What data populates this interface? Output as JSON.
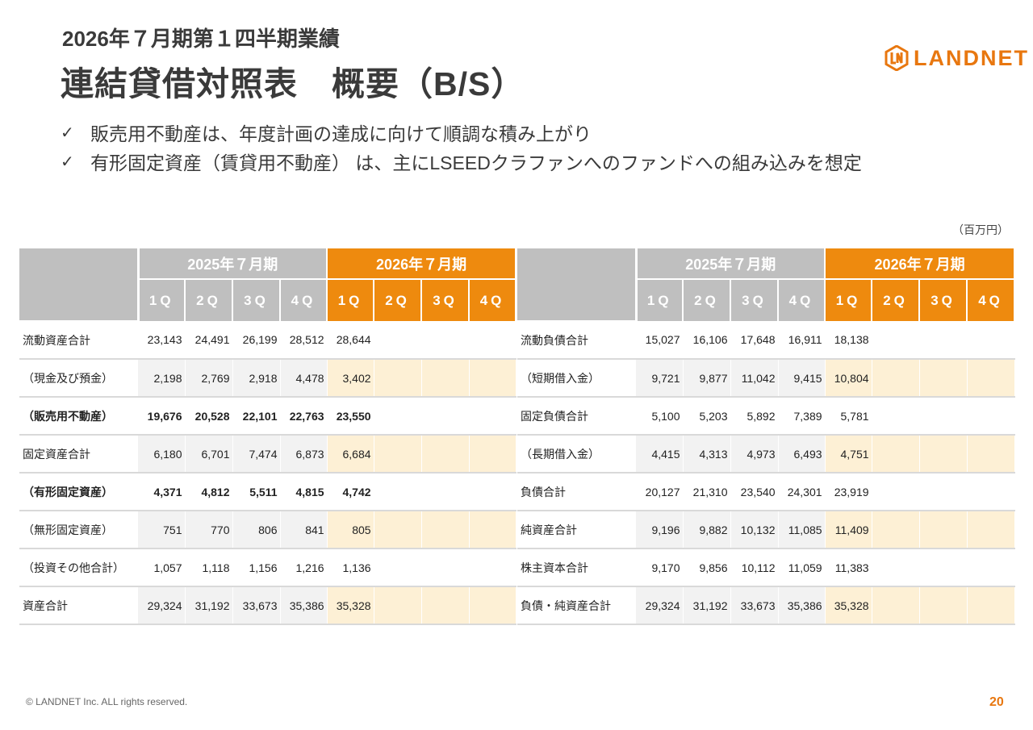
{
  "header": {
    "subtitle": "2026年７月期第１四半期業績",
    "title": "連結貸借対照表　概要（B/S）",
    "logo_text": "LANDNET"
  },
  "bullets": [
    {
      "icon": "check-icon",
      "text": "販売用不動産は、年度計画の達成に向けて順調な積み上がり"
    },
    {
      "icon": "check-icon",
      "text": "有形固定資産（賃貸用不動産） は、主にLSEEDクラファンへのファンドへの組み込みを想定"
    }
  ],
  "unit": "（百万円）",
  "columns": {
    "year_prev": "2025年７月期",
    "year_cur": "2026年７月期",
    "quarters": [
      "1Q",
      "2Q",
      "3Q",
      "4Q"
    ]
  },
  "left_table": {
    "rows": [
      {
        "label": "流動資産合計",
        "prev": [
          "23,143",
          "24,491",
          "26,199",
          "28,512"
        ],
        "cur": [
          "28,644",
          "",
          "",
          ""
        ]
      },
      {
        "label": "（現金及び預金）",
        "prev": [
          "2,198",
          "2,769",
          "2,918",
          "4,478"
        ],
        "cur": [
          "3,402",
          "",
          "",
          ""
        ]
      },
      {
        "label": "（販売用不動産）",
        "prev": [
          "19,676",
          "20,528",
          "22,101",
          "22,763"
        ],
        "cur": [
          "23,550",
          "",
          "",
          ""
        ]
      },
      {
        "label": "固定資産合計",
        "prev": [
          "6,180",
          "6,701",
          "7,474",
          "6,873"
        ],
        "cur": [
          "6,684",
          "",
          "",
          ""
        ]
      },
      {
        "label": "（有形固定資産）",
        "prev": [
          "4,371",
          "4,812",
          "5,511",
          "4,815"
        ],
        "cur": [
          "4,742",
          "",
          "",
          ""
        ]
      },
      {
        "label": "（無形固定資産）",
        "prev": [
          "751",
          "770",
          "806",
          "841"
        ],
        "cur": [
          "805",
          "",
          "",
          ""
        ]
      },
      {
        "label": "（投資その他合計）",
        "prev": [
          "1,057",
          "1,118",
          "1,156",
          "1,216"
        ],
        "cur": [
          "1,136",
          "",
          "",
          ""
        ]
      },
      {
        "label": "資産合計",
        "prev": [
          "29,324",
          "31,192",
          "33,673",
          "35,386"
        ],
        "cur": [
          "35,328",
          "",
          "",
          ""
        ]
      }
    ]
  },
  "right_table": {
    "rows": [
      {
        "label": "流動負債合計",
        "prev": [
          "15,027",
          "16,106",
          "17,648",
          "16,911"
        ],
        "cur": [
          "18,138",
          "",
          "",
          ""
        ]
      },
      {
        "label": "（短期借入金）",
        "prev": [
          "9,721",
          "9,877",
          "11,042",
          "9,415"
        ],
        "cur": [
          "10,804",
          "",
          "",
          ""
        ]
      },
      {
        "label": "固定負債合計",
        "prev": [
          "5,100",
          "5,203",
          "5,892",
          "7,389"
        ],
        "cur": [
          "5,781",
          "",
          "",
          ""
        ]
      },
      {
        "label": "（長期借入金）",
        "prev": [
          "4,415",
          "4,313",
          "4,973",
          "6,493"
        ],
        "cur": [
          "4,751",
          "",
          "",
          ""
        ]
      },
      {
        "label": "負債合計",
        "prev": [
          "20,127",
          "21,310",
          "23,540",
          "24,301"
        ],
        "cur": [
          "23,919",
          "",
          "",
          ""
        ]
      },
      {
        "label": "純資産合計",
        "prev": [
          "9,196",
          "9,882",
          "10,132",
          "11,085"
        ],
        "cur": [
          "11,409",
          "",
          "",
          ""
        ]
      },
      {
        "label": "株主資本合計",
        "prev": [
          "9,170",
          "9,856",
          "10,112",
          "11,059"
        ],
        "cur": [
          "11,383",
          "",
          "",
          ""
        ]
      },
      {
        "label": "負債・純資産合計",
        "prev": [
          "29,324",
          "31,192",
          "33,673",
          "35,386"
        ],
        "cur": [
          "35,328",
          "",
          "",
          ""
        ]
      }
    ]
  },
  "footer": {
    "copyright": "© LANDNET Inc. ALL rights reserved.",
    "page_number": "20"
  },
  "colors": {
    "accent": "#ee8a0e",
    "header_gray": "#bfbfbf",
    "shade_gray": "#f2f2f2",
    "shade_cream": "#fdf0d5"
  }
}
